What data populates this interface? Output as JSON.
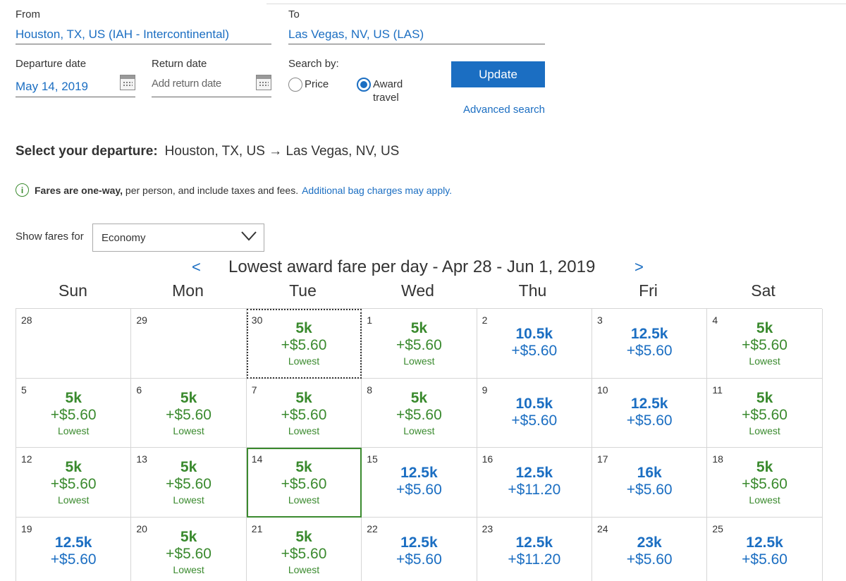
{
  "form": {
    "from_label": "From",
    "from_value": "Houston, TX, US (IAH - Intercontinental)",
    "to_label": "To",
    "to_value": "Las Vegas, NV, US (LAS)",
    "departure_label": "Departure date",
    "departure_value": "May 14, 2019",
    "return_label": "Return date",
    "return_placeholder": "Add return date",
    "search_by_label": "Search by:",
    "price_label": "Price",
    "award_label_1": "Award",
    "award_label_2": "travel",
    "update_label": "Update",
    "advanced_label": "Advanced search"
  },
  "heading": {
    "bold": "Select your departure:",
    "route": "Houston, TX, US → Las Vegas, NV, US"
  },
  "info": {
    "icon": "i",
    "bold": "Fares are one-way,",
    "text": " per person, and include taxes and fees.",
    "link": "Additional bag charges may apply."
  },
  "filter": {
    "label": "Show fares for",
    "value": "Economy"
  },
  "calendar": {
    "title": "Lowest award fare per day - Apr 28 - Jun 1, 2019",
    "prev": "<",
    "next": ">",
    "weekdays": [
      "Sun",
      "Mon",
      "Tue",
      "Wed",
      "Thu",
      "Fri",
      "Sat"
    ],
    "lowest_label": "Lowest",
    "colors": {
      "lowest": "#3a8a2e",
      "regular": "#1b6ec2"
    },
    "weeks": [
      [
        {
          "day": "28",
          "miles": "",
          "tax": "",
          "lowest": false
        },
        {
          "day": "29",
          "miles": "",
          "tax": "",
          "lowest": false
        },
        {
          "day": "30",
          "miles": "5k",
          "tax": "+$5.60",
          "lowest": true,
          "style": "dotted"
        },
        {
          "day": "1",
          "miles": "5k",
          "tax": "+$5.60",
          "lowest": true
        },
        {
          "day": "2",
          "miles": "10.5k",
          "tax": "+$5.60",
          "lowest": false
        },
        {
          "day": "3",
          "miles": "12.5k",
          "tax": "+$5.60",
          "lowest": false
        },
        {
          "day": "4",
          "miles": "5k",
          "tax": "+$5.60",
          "lowest": true
        }
      ],
      [
        {
          "day": "5",
          "miles": "5k",
          "tax": "+$5.60",
          "lowest": true
        },
        {
          "day": "6",
          "miles": "5k",
          "tax": "+$5.60",
          "lowest": true
        },
        {
          "day": "7",
          "miles": "5k",
          "tax": "+$5.60",
          "lowest": true
        },
        {
          "day": "8",
          "miles": "5k",
          "tax": "+$5.60",
          "lowest": true
        },
        {
          "day": "9",
          "miles": "10.5k",
          "tax": "+$5.60",
          "lowest": false
        },
        {
          "day": "10",
          "miles": "12.5k",
          "tax": "+$5.60",
          "lowest": false
        },
        {
          "day": "11",
          "miles": "5k",
          "tax": "+$5.60",
          "lowest": true
        }
      ],
      [
        {
          "day": "12",
          "miles": "5k",
          "tax": "+$5.60",
          "lowest": true
        },
        {
          "day": "13",
          "miles": "5k",
          "tax": "+$5.60",
          "lowest": true
        },
        {
          "day": "14",
          "miles": "5k",
          "tax": "+$5.60",
          "lowest": true,
          "style": "selected"
        },
        {
          "day": "15",
          "miles": "12.5k",
          "tax": "+$5.60",
          "lowest": false
        },
        {
          "day": "16",
          "miles": "12.5k",
          "tax": "+$11.20",
          "lowest": false
        },
        {
          "day": "17",
          "miles": "16k",
          "tax": "+$5.60",
          "lowest": false
        },
        {
          "day": "18",
          "miles": "5k",
          "tax": "+$5.60",
          "lowest": true
        }
      ],
      [
        {
          "day": "19",
          "miles": "12.5k",
          "tax": "+$5.60",
          "lowest": false
        },
        {
          "day": "20",
          "miles": "5k",
          "tax": "+$5.60",
          "lowest": true
        },
        {
          "day": "21",
          "miles": "5k",
          "tax": "+$5.60",
          "lowest": true
        },
        {
          "day": "22",
          "miles": "12.5k",
          "tax": "+$5.60",
          "lowest": false
        },
        {
          "day": "23",
          "miles": "12.5k",
          "tax": "+$11.20",
          "lowest": false
        },
        {
          "day": "24",
          "miles": "23k",
          "tax": "+$5.60",
          "lowest": false
        },
        {
          "day": "25",
          "miles": "12.5k",
          "tax": "+$5.60",
          "lowest": false
        }
      ]
    ]
  }
}
